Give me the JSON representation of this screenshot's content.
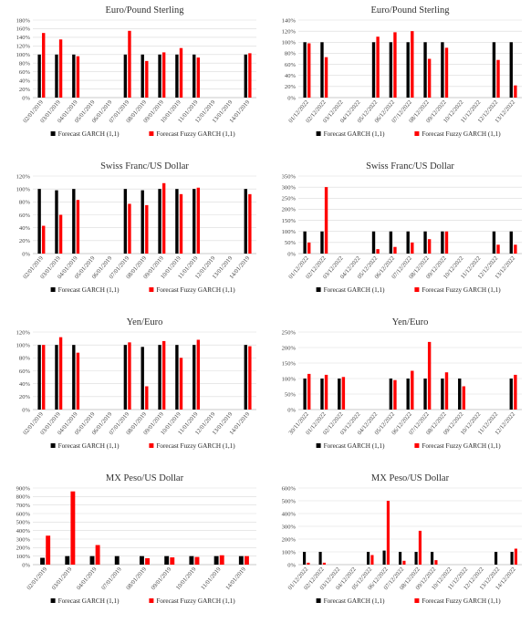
{
  "colors": {
    "garch": "#000000",
    "fuzzy": "#ff0000"
  },
  "chart_data": [
    {
      "id": "c1",
      "type": "bar",
      "title": "Euro/Pound Sterling",
      "ylim": [
        0,
        180
      ],
      "yticks": [
        0,
        20,
        40,
        60,
        80,
        100,
        120,
        140,
        160,
        180
      ],
      "legend_position": "bottom",
      "categories": [
        "02/01/2019",
        "03/01/2019",
        "04/01/2019",
        "05/01/2019",
        "06/01/2019",
        "07/01/2019",
        "08/01/2019",
        "09/01/2019",
        "10/01/2019",
        "11/01/2019",
        "12/01/2019",
        "13/01/2019",
        "14/01/2019"
      ],
      "series": [
        {
          "name": "Forecast GARCH (1,1)",
          "values": [
            100,
            100,
            100,
            null,
            null,
            100,
            100,
            100,
            100,
            100,
            null,
            null,
            100
          ]
        },
        {
          "name": "Forecast Fuzzy GARCH (1,1)",
          "values": [
            150,
            135,
            96,
            null,
            null,
            155,
            85,
            105,
            115,
            93,
            null,
            null,
            103
          ]
        }
      ]
    },
    {
      "id": "c2",
      "type": "bar",
      "title": "Euro/Pound Sterling",
      "ylim": [
        0,
        140
      ],
      "yticks": [
        0,
        20,
        40,
        60,
        80,
        100,
        120,
        140
      ],
      "legend_position": "bottom",
      "categories": [
        "01/12/2022",
        "02/12/2022",
        "03/12/2022",
        "04/12/2022",
        "05/12/2022",
        "06/12/2022",
        "07/12/2022",
        "08/12/2022",
        "09/12/2022",
        "10/12/2022",
        "11/12/2022",
        "12/12/2022",
        "13/12/2022"
      ],
      "series": [
        {
          "name": "Forecast GARCH (1,1)",
          "values": [
            100,
            100,
            null,
            null,
            100,
            100,
            100,
            100,
            100,
            null,
            null,
            100,
            100
          ]
        },
        {
          "name": "Forecast Fuzzy GARCH (1,1)",
          "values": [
            98,
            73,
            null,
            null,
            110,
            118,
            120,
            70,
            90,
            null,
            null,
            68,
            22
          ]
        }
      ]
    },
    {
      "id": "c3",
      "type": "bar",
      "title": "Swiss Franc/US Dollar",
      "ylim": [
        0,
        120
      ],
      "yticks": [
        0,
        20,
        40,
        60,
        80,
        100,
        120
      ],
      "legend_position": "bottom",
      "categories": [
        "02/01/2019",
        "03/01/2019",
        "04/01/2019",
        "05/01/2019",
        "06/01/2019",
        "07/01/2019",
        "08/01/2019",
        "09/01/2019",
        "10/01/2019",
        "11/01/2019",
        "12/01/2019",
        "13/01/2019",
        "14/01/2019"
      ],
      "series": [
        {
          "name": "Forecast GARCH (1,1)",
          "values": [
            100,
            98,
            100,
            null,
            null,
            100,
            98,
            100,
            100,
            100,
            null,
            null,
            100
          ]
        },
        {
          "name": "Forecast Fuzzy GARCH (1,1)",
          "values": [
            43,
            60,
            83,
            null,
            null,
            77,
            75,
            109,
            92,
            102,
            null,
            null,
            92
          ]
        }
      ]
    },
    {
      "id": "c4",
      "type": "bar",
      "title": "Swiss Franc/US Dollar",
      "ylim": [
        0,
        350
      ],
      "yticks": [
        0,
        50,
        100,
        150,
        200,
        250,
        300,
        350
      ],
      "legend_position": "bottom",
      "categories": [
        "01/12/2022",
        "02/12/2022",
        "03/12/2022",
        "04/12/2022",
        "05/12/2022",
        "06/12/2022",
        "07/12/2022",
        "08/12/2022",
        "09/12/2022",
        "10/12/2022",
        "11/12/2022",
        "12/12/2022",
        "13/12/2022"
      ],
      "series": [
        {
          "name": "Forecast GARCH (1,1)",
          "values": [
            100,
            100,
            null,
            null,
            100,
            100,
            100,
            100,
            100,
            null,
            null,
            100,
            100
          ]
        },
        {
          "name": "Forecast Fuzzy GARCH (1,1)",
          "values": [
            50,
            300,
            null,
            null,
            20,
            30,
            50,
            65,
            100,
            null,
            null,
            40,
            40
          ]
        }
      ]
    },
    {
      "id": "c5",
      "type": "bar",
      "title": "Yen/Euro",
      "ylim": [
        0,
        120
      ],
      "yticks": [
        0,
        20,
        40,
        60,
        80,
        100,
        120
      ],
      "legend_position": "bottom",
      "categories": [
        "02/01/2019",
        "03/01/2019",
        "04/01/2019",
        "05/01/2019",
        "06/01/2019",
        "07/01/2019",
        "08/01/2019",
        "09/01/2019",
        "10/01/2019",
        "11/01/2019",
        "12/01/2019",
        "13/01/2019",
        "14/01/2019"
      ],
      "series": [
        {
          "name": "Forecast GARCH (1,1)",
          "values": [
            100,
            100,
            100,
            null,
            null,
            100,
            97,
            100,
            100,
            100,
            null,
            null,
            100
          ]
        },
        {
          "name": "Forecast Fuzzy GARCH (1,1)",
          "values": [
            100,
            112,
            88,
            null,
            null,
            104,
            36,
            106,
            80,
            108,
            null,
            null,
            98
          ]
        }
      ]
    },
    {
      "id": "c6",
      "type": "bar",
      "title": "Yen/Euro",
      "ylim": [
        0,
        250
      ],
      "yticks": [
        0,
        50,
        100,
        150,
        200,
        250
      ],
      "legend_position": "bottom",
      "categories": [
        "30/11/2022",
        "01/12/2022",
        "02/12/2022",
        "03/12/2022",
        "04/12/2022",
        "05/12/2022",
        "06/12/2022",
        "07/12/2022",
        "08/12/2022",
        "09/12/2022",
        "10/12/2022",
        "11/12/2022",
        "12/12/2022"
      ],
      "series": [
        {
          "name": "Forecast GARCH (1,1)",
          "values": [
            100,
            100,
            100,
            null,
            null,
            100,
            100,
            100,
            100,
            100,
            null,
            null,
            100
          ]
        },
        {
          "name": "Forecast Fuzzy GARCH (1,1)",
          "values": [
            115,
            112,
            105,
            null,
            null,
            95,
            125,
            218,
            120,
            75,
            null,
            null,
            112
          ]
        }
      ]
    },
    {
      "id": "c7",
      "type": "bar",
      "title": "MX Peso/US Dollar",
      "ylim": [
        0,
        900
      ],
      "yticks": [
        0,
        100,
        200,
        300,
        400,
        500,
        600,
        700,
        800,
        900
      ],
      "legend_position": "bottom",
      "categories": [
        "02/01/2019",
        "03/01/2019",
        "04/01/2019",
        "07/01/2019",
        "08/01/2019",
        "09/01/2019",
        "10/01/2019",
        "11/01/2019",
        "14/01/2019"
      ],
      "series": [
        {
          "name": "Forecast GARCH (1,1)",
          "values": [
            80,
            100,
            100,
            100,
            100,
            100,
            100,
            100,
            100
          ]
        },
        {
          "name": "Forecast Fuzzy GARCH (1,1)",
          "values": [
            340,
            860,
            230,
            null,
            75,
            85,
            90,
            110,
            100
          ]
        }
      ]
    },
    {
      "id": "c8",
      "type": "bar",
      "title": "MX Peso/US Dollar",
      "ylim": [
        0,
        600
      ],
      "yticks": [
        0,
        100,
        200,
        300,
        400,
        500,
        600
      ],
      "legend_position": "bottom",
      "categories": [
        "01/12/2022",
        "02/12/2022",
        "03/12/2022",
        "04/12/2022",
        "05/12/2022",
        "06/12/2022",
        "07/12/2022",
        "08/12/2022",
        "09/12/2022",
        "10/12/2022",
        "11/12/2022",
        "12/12/2022",
        "13/12/2022",
        "14/12/2022"
      ],
      "series": [
        {
          "name": "Forecast GARCH (1,1)",
          "values": [
            100,
            100,
            null,
            null,
            100,
            110,
            100,
            100,
            100,
            null,
            null,
            null,
            100,
            100
          ]
        },
        {
          "name": "Forecast Fuzzy GARCH (1,1)",
          "values": [
            15,
            15,
            null,
            null,
            75,
            500,
            30,
            265,
            35,
            null,
            null,
            null,
            null,
            125
          ]
        }
      ]
    }
  ]
}
